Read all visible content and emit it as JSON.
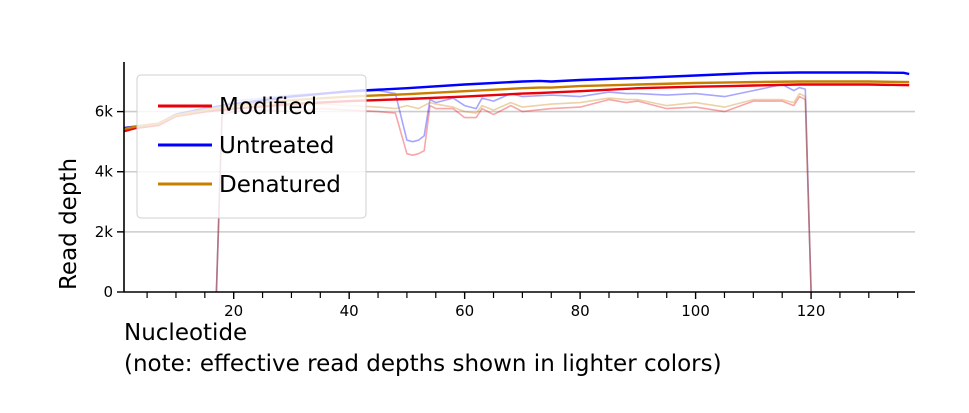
{
  "chart_data": {
    "type": "line",
    "xlabel": "Nucleotide",
    "xlabel_note": "(note: effective read depths shown in lighter colors)",
    "ylabel": "Read depth",
    "xlim": [
      1,
      138
    ],
    "ylim": [
      0,
      7650
    ],
    "x_ticks": [
      20,
      40,
      60,
      80,
      100,
      120
    ],
    "x_minor_ticks": [
      5,
      10,
      15,
      25,
      30,
      35,
      45,
      50,
      55,
      65,
      70,
      75,
      85,
      90,
      95,
      105,
      110,
      115,
      125,
      130,
      135
    ],
    "y_ticks": [
      0,
      2000,
      4000,
      6000
    ],
    "y_tick_labels": [
      "0",
      "2k",
      "4k",
      "6k"
    ],
    "grid": "horizontal",
    "legend_position": "upper-left",
    "colors": {
      "Modified": "#e8000b",
      "Untreated": "#0000ff",
      "Denatured": "#c87f00"
    },
    "series": [
      {
        "name": "Modified",
        "x": [
          1,
          3,
          5,
          7,
          10,
          15,
          20,
          30,
          40,
          50,
          60,
          70,
          73,
          75,
          80,
          90,
          100,
          106,
          110,
          118,
          120,
          130,
          137
        ],
        "values": [
          5350,
          5450,
          5500,
          5550,
          5850,
          6000,
          6100,
          6250,
          6350,
          6420,
          6500,
          6600,
          6620,
          6640,
          6680,
          6780,
          6830,
          6850,
          6870,
          6900,
          6900,
          6900,
          6880
        ]
      },
      {
        "name": "Untreated",
        "x": [
          1,
          3,
          5,
          7,
          10,
          15,
          20,
          30,
          40,
          50,
          60,
          70,
          73,
          75,
          80,
          90,
          100,
          106,
          110,
          118,
          120,
          130,
          136,
          137
        ],
        "values": [
          5450,
          5500,
          5550,
          5600,
          5900,
          6100,
          6250,
          6500,
          6680,
          6780,
          6900,
          7000,
          7020,
          7000,
          7050,
          7120,
          7200,
          7250,
          7280,
          7300,
          7300,
          7300,
          7290,
          7250
        ]
      },
      {
        "name": "Denatured",
        "x": [
          1,
          3,
          5,
          7,
          10,
          15,
          20,
          30,
          40,
          50,
          60,
          70,
          73,
          75,
          80,
          90,
          100,
          106,
          110,
          118,
          120,
          130,
          137
        ],
        "values": [
          5420,
          5500,
          5550,
          5600,
          5880,
          6050,
          6200,
          6380,
          6500,
          6580,
          6680,
          6780,
          6800,
          6800,
          6850,
          6900,
          6950,
          6970,
          6980,
          7000,
          7000,
          7000,
          6980
        ]
      }
    ],
    "effective_series": [
      {
        "of": "Modified",
        "x": [
          17,
          18,
          20,
          25,
          30,
          35,
          40,
          45,
          48,
          50,
          51,
          52,
          53,
          54,
          55,
          58,
          60,
          62,
          63,
          65,
          68,
          70,
          75,
          80,
          85,
          88,
          90,
          95,
          100,
          105,
          110,
          115,
          117,
          118,
          119,
          120
        ],
        "values": [
          0,
          5900,
          6000,
          6050,
          6000,
          6100,
          6050,
          6000,
          5950,
          4600,
          4550,
          4600,
          4700,
          6200,
          6100,
          6100,
          5800,
          5800,
          6100,
          5900,
          6200,
          6000,
          6100,
          6150,
          6400,
          6300,
          6350,
          6100,
          6150,
          6000,
          6350,
          6350,
          6200,
          6500,
          6400,
          0
        ]
      },
      {
        "of": "Untreated",
        "x": [
          17,
          18,
          20,
          25,
          30,
          35,
          40,
          45,
          48,
          50,
          51,
          52,
          53,
          54,
          55,
          58,
          60,
          62,
          63,
          65,
          68,
          70,
          75,
          80,
          85,
          88,
          90,
          95,
          100,
          105,
          110,
          115,
          117,
          118,
          119,
          120
        ],
        "values": [
          0,
          6200,
          6350,
          6450,
          6550,
          6600,
          6650,
          6700,
          6600,
          5050,
          5000,
          5050,
          5200,
          6400,
          6300,
          6450,
          6200,
          6100,
          6450,
          6350,
          6600,
          6500,
          6550,
          6500,
          6650,
          6600,
          6600,
          6550,
          6600,
          6500,
          6700,
          6900,
          6700,
          6800,
          6750,
          0
        ]
      },
      {
        "of": "Denatured",
        "x": [
          17,
          18,
          20,
          25,
          30,
          35,
          40,
          45,
          48,
          50,
          51,
          52,
          53,
          54,
          55,
          58,
          60,
          62,
          63,
          65,
          68,
          70,
          75,
          80,
          85,
          88,
          90,
          95,
          100,
          105,
          110,
          115,
          117,
          118,
          119,
          120
        ],
        "values": [
          0,
          6000,
          6100,
          6150,
          6200,
          6250,
          6200,
          6150,
          6100,
          6200,
          6150,
          6100,
          6200,
          6300,
          6250,
          6150,
          6000,
          5950,
          6200,
          6050,
          6300,
          6150,
          6250,
          6300,
          6450,
          6400,
          6400,
          6200,
          6300,
          6150,
          6400,
          6400,
          6300,
          6600,
          6500,
          0
        ]
      }
    ]
  }
}
